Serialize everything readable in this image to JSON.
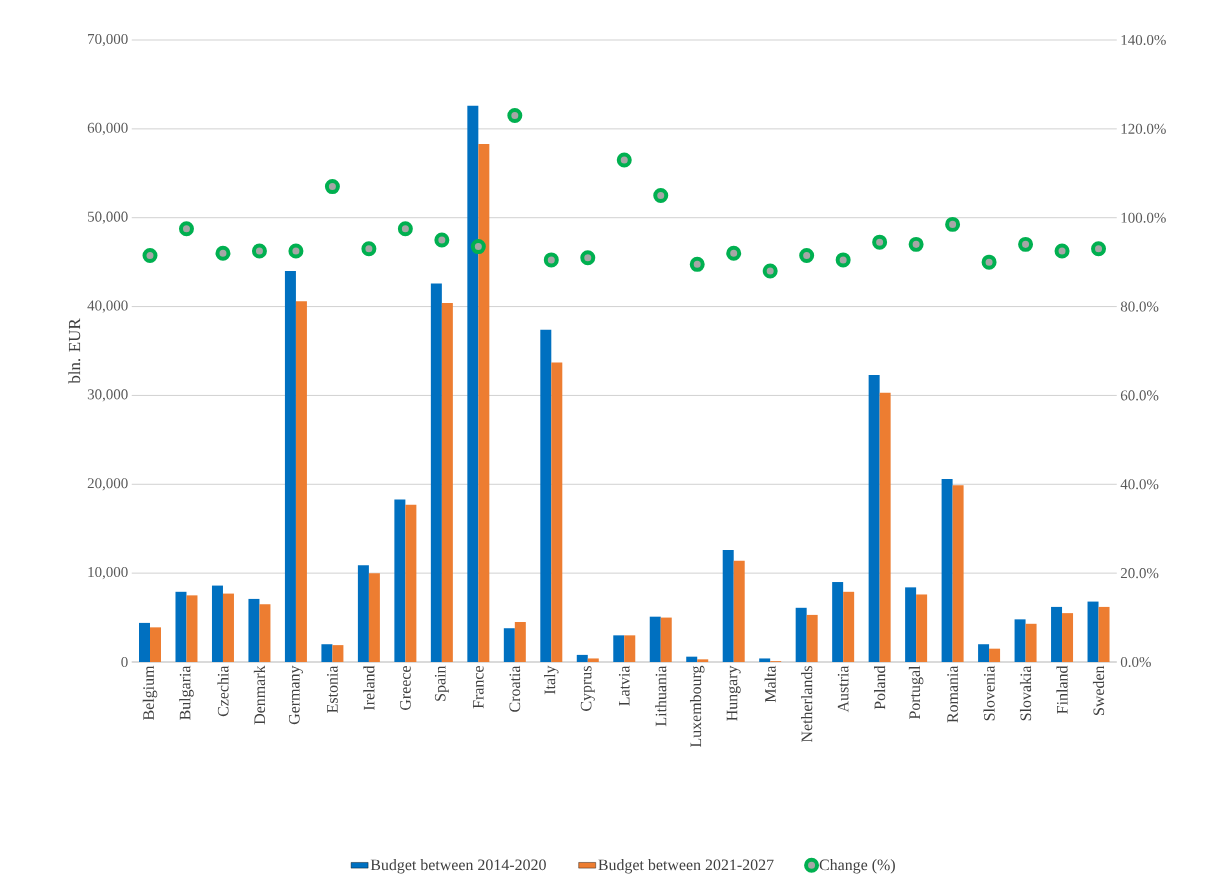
{
  "chart_data": {
    "type": "bar",
    "ylabel": "bln. EUR",
    "categories": [
      "Belgium",
      "Bulgaria",
      "Czechia",
      "Denmark",
      "Germany",
      "Estonia",
      "Ireland",
      "Greece",
      "Spain",
      "France",
      "Croatia",
      "Italy",
      "Cyprus",
      "Latvia",
      "Lithuania",
      "Luxembourg",
      "Hungary",
      "Malta",
      "Netherlands",
      "Austria",
      "Poland",
      "Portugal",
      "Romania",
      "Slovenia",
      "Slovakia",
      "Finland",
      "Sweden"
    ],
    "series": [
      {
        "name": "Budget between 2014-2020",
        "color": "#0070c0",
        "values": [
          4400,
          7900,
          8600,
          7100,
          44000,
          2000,
          10900,
          18300,
          42600,
          62600,
          3800,
          37400,
          800,
          3000,
          5100,
          600,
          12600,
          400,
          6100,
          9000,
          32300,
          8400,
          20600,
          2000,
          4800,
          6200,
          6800
        ]
      },
      {
        "name": "Budget between 2021-2027",
        "color": "#ed7d31",
        "values": [
          3900,
          7500,
          7700,
          6500,
          40600,
          1900,
          10000,
          17700,
          40400,
          58300,
          4500,
          33700,
          400,
          3000,
          5000,
          300,
          11400,
          100,
          5300,
          7900,
          30300,
          7600,
          19900,
          1500,
          4300,
          5500,
          6200
        ]
      },
      {
        "name": "Change (%)",
        "type": "scatter",
        "axis": "y2",
        "color": "#00b050",
        "marker": "circle",
        "values": [
          91.5,
          97.5,
          92,
          92.5,
          92.5,
          107,
          93,
          97.5,
          95,
          93.5,
          123,
          90.5,
          91,
          113,
          105,
          89.5,
          92,
          88,
          91.5,
          90.5,
          94.5,
          94,
          98.5,
          90,
          94,
          92.5,
          93
        ]
      }
    ],
    "ylim": [
      0,
      70000
    ],
    "yticks": [
      0,
      {
        "value": 10000,
        "label": "10,000"
      },
      {
        "value": 20000,
        "label": "20,000"
      },
      {
        "value": 30000,
        "label": "30,000"
      },
      {
        "value": 40000,
        "label": "40,000"
      },
      {
        "value": 50000,
        "label": "50,000"
      },
      {
        "value": 60000,
        "label": "60,000"
      },
      {
        "value": 70000,
        "label": "70,000"
      }
    ],
    "y2lim": [
      0,
      140
    ],
    "y2ticks": [
      {
        "value": 0,
        "label": "0.0%"
      },
      {
        "value": 20,
        "label": "20.0%"
      },
      {
        "value": 40,
        "label": "40.0%"
      },
      {
        "value": 60,
        "label": "60.0%"
      },
      {
        "value": 80,
        "label": "80.0%"
      },
      {
        "value": 100,
        "label": "100.0%"
      },
      {
        "value": 120,
        "label": "120.0%"
      },
      {
        "value": 140,
        "label": "140.0%"
      }
    ],
    "grid": "y",
    "legend": "bottom"
  }
}
